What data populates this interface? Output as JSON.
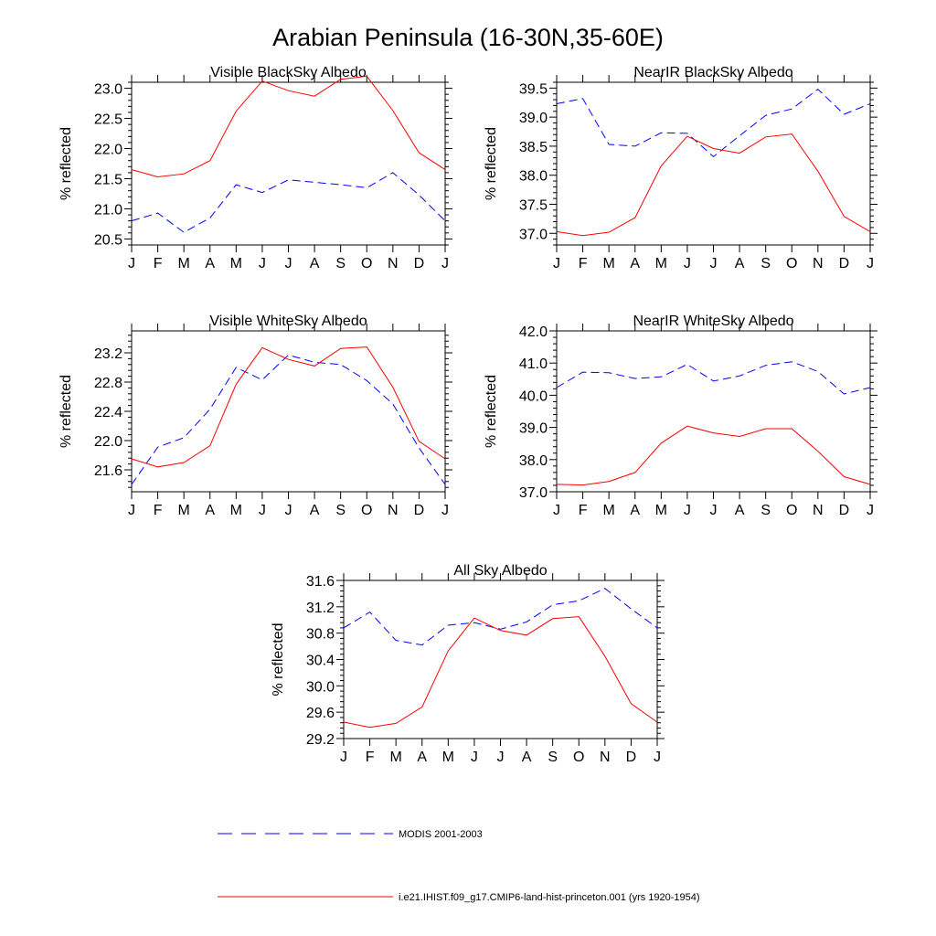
{
  "page": {
    "title": "Arabian Peninsula (16-30N,35-60E)"
  },
  "legend": {
    "modis_label": "MODIS 2001-2003",
    "model_label": "i.e21.IHIST.f09_g17.CMIP6-land-hist-princeton.001 (yrs 1920-1954)"
  },
  "colors": {
    "modis": "#0000ff",
    "model": "#ff0000",
    "axes": "#000000"
  },
  "chart_data": [
    {
      "type": "line",
      "title": "Visible BlackSky Albedo",
      "ylabel": "% reflected",
      "x": [
        "J",
        "F",
        "M",
        "A",
        "M",
        "J",
        "J",
        "A",
        "S",
        "O",
        "N",
        "D",
        "J"
      ],
      "ylim": [
        20.4,
        23.1
      ],
      "yticks": [
        "20.5",
        "21.0",
        "21.5",
        "22.0",
        "22.5",
        "23.0"
      ],
      "grid": false,
      "series": [
        {
          "name": "MODIS 2001-2003",
          "color": "#0000ff",
          "dash": true,
          "values": [
            20.8,
            20.93,
            20.61,
            20.85,
            21.4,
            21.27,
            21.48,
            21.44,
            21.4,
            21.35,
            21.6,
            21.23,
            20.8
          ]
        },
        {
          "name": "i.e21.IHIST.f09_g17.CMIP6-land-hist-princeton.001 (yrs 1920-1954)",
          "color": "#ff0000",
          "dash": false,
          "values": [
            21.65,
            21.53,
            21.58,
            21.8,
            22.62,
            23.12,
            22.96,
            22.87,
            23.15,
            23.2,
            22.63,
            21.93,
            21.65
          ]
        }
      ]
    },
    {
      "type": "line",
      "title": "NearIR BlackSky Albedo",
      "ylabel": "% reflected",
      "x": [
        "J",
        "F",
        "M",
        "A",
        "M",
        "J",
        "J",
        "A",
        "S",
        "O",
        "N",
        "D",
        "J"
      ],
      "ylim": [
        36.8,
        39.6
      ],
      "yticks": [
        "37.0",
        "37.5",
        "38.0",
        "38.5",
        "39.0",
        "39.5"
      ],
      "grid": false,
      "series": [
        {
          "name": "MODIS 2001-2003",
          "color": "#0000ff",
          "dash": true,
          "values": [
            39.23,
            39.32,
            38.53,
            38.5,
            38.73,
            38.72,
            38.32,
            38.68,
            39.03,
            39.14,
            39.48,
            39.05,
            39.23
          ]
        },
        {
          "name": "i.e21.IHIST.f09_g17.CMIP6-land-hist-princeton.001 (yrs 1920-1954)",
          "color": "#ff0000",
          "dash": false,
          "values": [
            37.03,
            36.96,
            37.02,
            37.27,
            38.16,
            38.67,
            38.46,
            38.38,
            38.66,
            38.71,
            38.07,
            37.29,
            37.03
          ]
        }
      ]
    },
    {
      "type": "line",
      "title": "Visible WhiteSky Albedo",
      "ylabel": "% reflected",
      "x": [
        "J",
        "F",
        "M",
        "A",
        "M",
        "J",
        "J",
        "A",
        "S",
        "O",
        "N",
        "D",
        "J"
      ],
      "ylim": [
        21.3,
        23.5
      ],
      "yticks": [
        "21.6",
        "22.0",
        "22.4",
        "22.8",
        "23.2"
      ],
      "grid": false,
      "series": [
        {
          "name": "MODIS 2001-2003",
          "color": "#0000ff",
          "dash": true,
          "values": [
            21.4,
            21.91,
            22.04,
            22.43,
            23.0,
            22.83,
            23.17,
            23.07,
            23.04,
            22.82,
            22.5,
            21.9,
            21.4
          ]
        },
        {
          "name": "i.e21.IHIST.f09_g17.CMIP6-land-hist-princeton.001 (yrs 1920-1954)",
          "color": "#ff0000",
          "dash": false,
          "values": [
            21.75,
            21.64,
            21.7,
            21.93,
            22.77,
            23.27,
            23.11,
            23.02,
            23.26,
            23.28,
            22.73,
            21.99,
            21.75
          ]
        }
      ]
    },
    {
      "type": "line",
      "title": "NearIR WhiteSky Albedo",
      "ylabel": "% reflected",
      "x": [
        "J",
        "F",
        "M",
        "A",
        "M",
        "J",
        "J",
        "A",
        "S",
        "O",
        "N",
        "D",
        "J"
      ],
      "ylim": [
        37.0,
        42.0
      ],
      "yticks": [
        "37.0",
        "38.0",
        "39.0",
        "40.0",
        "41.0",
        "42.0"
      ],
      "grid": false,
      "series": [
        {
          "name": "MODIS 2001-2003",
          "color": "#0000ff",
          "dash": true,
          "values": [
            40.24,
            40.72,
            40.7,
            40.52,
            40.57,
            40.96,
            40.44,
            40.6,
            40.93,
            41.04,
            40.74,
            40.04,
            40.24
          ]
        },
        {
          "name": "i.e21.IHIST.f09_g17.CMIP6-land-hist-princeton.001 (yrs 1920-1954)",
          "color": "#ff0000",
          "dash": false,
          "values": [
            37.23,
            37.21,
            37.32,
            37.6,
            38.51,
            39.04,
            38.83,
            38.72,
            38.96,
            38.96,
            38.26,
            37.47,
            37.23
          ]
        }
      ]
    },
    {
      "type": "line",
      "title": "All Sky Albedo",
      "ylabel": "% reflected",
      "x": [
        "J",
        "F",
        "M",
        "A",
        "M",
        "J",
        "J",
        "A",
        "S",
        "O",
        "N",
        "D",
        "J"
      ],
      "ylim": [
        29.2,
        31.6
      ],
      "yticks": [
        "29.2",
        "29.6",
        "30.0",
        "30.4",
        "30.8",
        "31.2",
        "31.6"
      ],
      "grid": false,
      "series": [
        {
          "name": "MODIS 2001-2003",
          "color": "#0000ff",
          "dash": true,
          "values": [
            30.88,
            31.12,
            30.69,
            30.62,
            30.92,
            30.96,
            30.86,
            30.97,
            31.23,
            31.29,
            31.48,
            31.17,
            30.88
          ]
        },
        {
          "name": "i.e21.IHIST.f09_g17.CMIP6-land-hist-princeton.001 (yrs 1920-1954)",
          "color": "#ff0000",
          "dash": false,
          "values": [
            29.45,
            29.37,
            29.43,
            29.68,
            30.53,
            31.03,
            30.84,
            30.77,
            31.02,
            31.05,
            30.45,
            29.73,
            29.45
          ]
        }
      ]
    }
  ]
}
